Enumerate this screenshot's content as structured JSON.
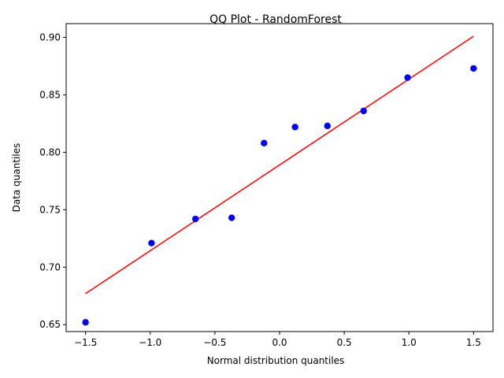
{
  "chart_data": {
    "type": "scatter",
    "title": "QQ Plot - RandomForest",
    "xlabel": "Normal distribution quantiles",
    "ylabel": "Data quantiles",
    "xlim": [
      -1.65,
      1.65
    ],
    "ylim": [
      0.644,
      0.912
    ],
    "x_ticks": [
      -1.5,
      -1.0,
      -0.5,
      0.0,
      0.5,
      1.0,
      1.5
    ],
    "x_tick_labels": [
      "−1.5",
      "−1.0",
      "−0.5",
      "0.0",
      "0.5",
      "1.0",
      "1.5"
    ],
    "y_ticks": [
      0.65,
      0.7,
      0.75,
      0.8,
      0.85,
      0.9
    ],
    "y_tick_labels": [
      "0.65",
      "0.70",
      "0.75",
      "0.80",
      "0.85",
      "0.90"
    ],
    "grid": false,
    "series": [
      {
        "type": "scatter",
        "color": "#0000ff",
        "x": [
          -1.5,
          -0.99,
          -0.65,
          -0.37,
          -0.12,
          0.12,
          0.37,
          0.65,
          0.99,
          1.5
        ],
        "y": [
          0.652,
          0.721,
          0.742,
          0.743,
          0.808,
          0.822,
          0.823,
          0.836,
          0.865,
          0.873
        ]
      },
      {
        "type": "line",
        "color": "#ff0000",
        "x": [
          -1.5,
          1.5
        ],
        "y": [
          0.677,
          0.901
        ]
      }
    ]
  }
}
